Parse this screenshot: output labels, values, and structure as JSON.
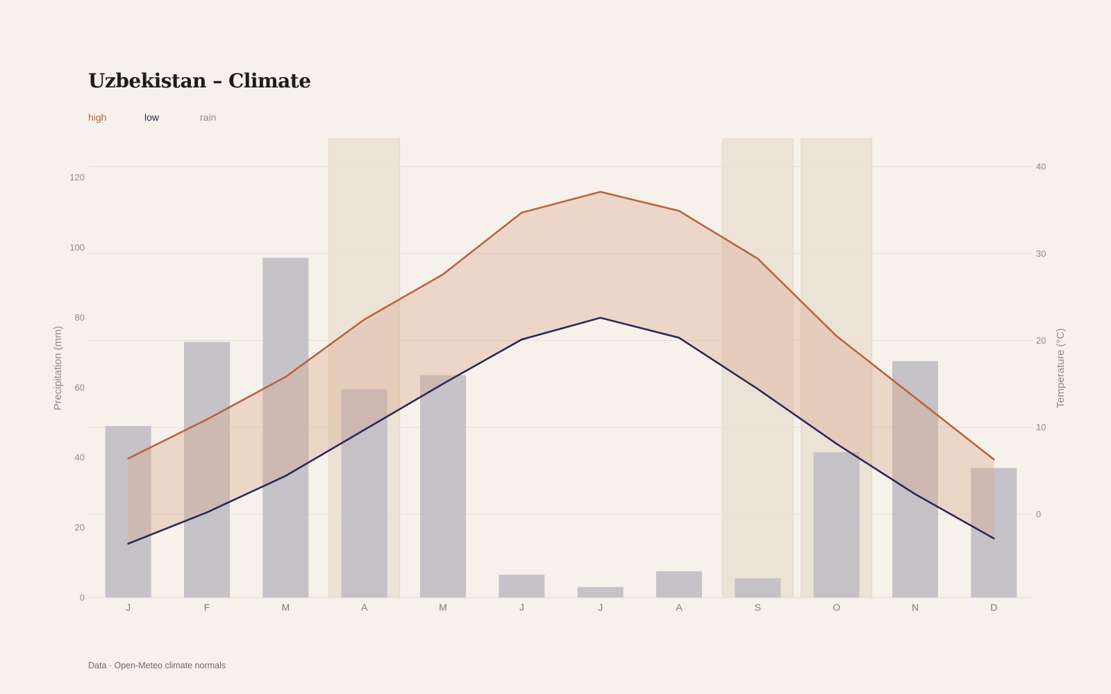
{
  "colors": {
    "background": "#f6f2eb",
    "high": "#b8643f",
    "low": "#2c2957",
    "rain": "#8e8aa0",
    "bars": "#c2bfc6",
    "band_fill": "#e9d4c7",
    "highlight": "#ece3d6",
    "grid": "#e5ded3"
  },
  "title": "Uzbekistan – Climate",
  "legend": {
    "high": "high",
    "low": "low",
    "rain": "rain"
  },
  "source": "Data · Open-Meteo climate normals",
  "chart_data": {
    "type": "bar+line",
    "categories": [
      "J",
      "F",
      "M",
      "A",
      "M",
      "J",
      "J",
      "A",
      "S",
      "O",
      "N",
      "D"
    ],
    "highlighted_months": [
      3,
      8,
      9
    ],
    "y_left": {
      "label": "Precipitation (mm)",
      "range": [
        0,
        131
      ],
      "ticks": [
        0,
        20,
        40,
        60,
        80,
        100,
        120
      ]
    },
    "y_right": {
      "label": "Temperature (°C)",
      "range": [
        -9.6,
        43.2
      ],
      "ticks": [
        0,
        10,
        20,
        30,
        40
      ]
    },
    "series": [
      {
        "name": "rain",
        "type": "bar",
        "axis": "left",
        "values": [
          49,
          73,
          97,
          59.5,
          63.5,
          6.5,
          3,
          7.5,
          5.5,
          41.5,
          67.5,
          37
        ]
      },
      {
        "name": "high",
        "type": "line",
        "axis": "right",
        "values": [
          6.4,
          10.9,
          15.8,
          22.4,
          27.6,
          34.7,
          37.1,
          34.9,
          29.4,
          20.5,
          13.4,
          6.3
        ]
      },
      {
        "name": "low",
        "type": "line",
        "axis": "right",
        "values": [
          -3.4,
          0.2,
          4.4,
          9.7,
          15.0,
          20.1,
          22.6,
          20.3,
          14.4,
          8.1,
          2.3,
          -2.8
        ]
      }
    ]
  }
}
